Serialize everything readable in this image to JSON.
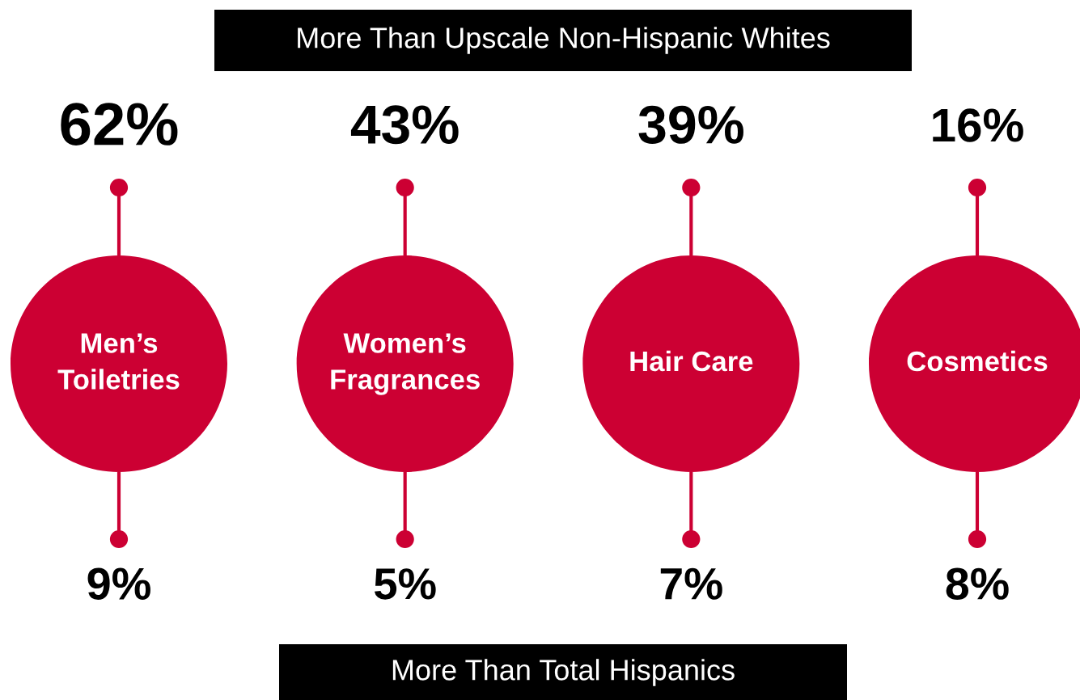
{
  "chart_data": {
    "type": "other",
    "categories": [
      "Men’s\nToiletries",
      "Women’s\nFragrances",
      "Hair Care",
      "Cosmetics"
    ],
    "colors": [
      "#cc0033",
      "#cc0033",
      "#cc0033",
      "#cc0033"
    ],
    "series": [
      {
        "name": "More Than Upscale Non-Hispanic Whites",
        "values": [
          62,
          43,
          39,
          16
        ],
        "value_labels": [
          "62%",
          "43%",
          "39%",
          "16%"
        ]
      },
      {
        "name": "More Than Total Hispanics",
        "values": [
          9,
          5,
          7,
          8
        ],
        "value_labels": [
          "9%",
          "5%",
          "7%",
          "8%"
        ]
      }
    ]
  }
}
